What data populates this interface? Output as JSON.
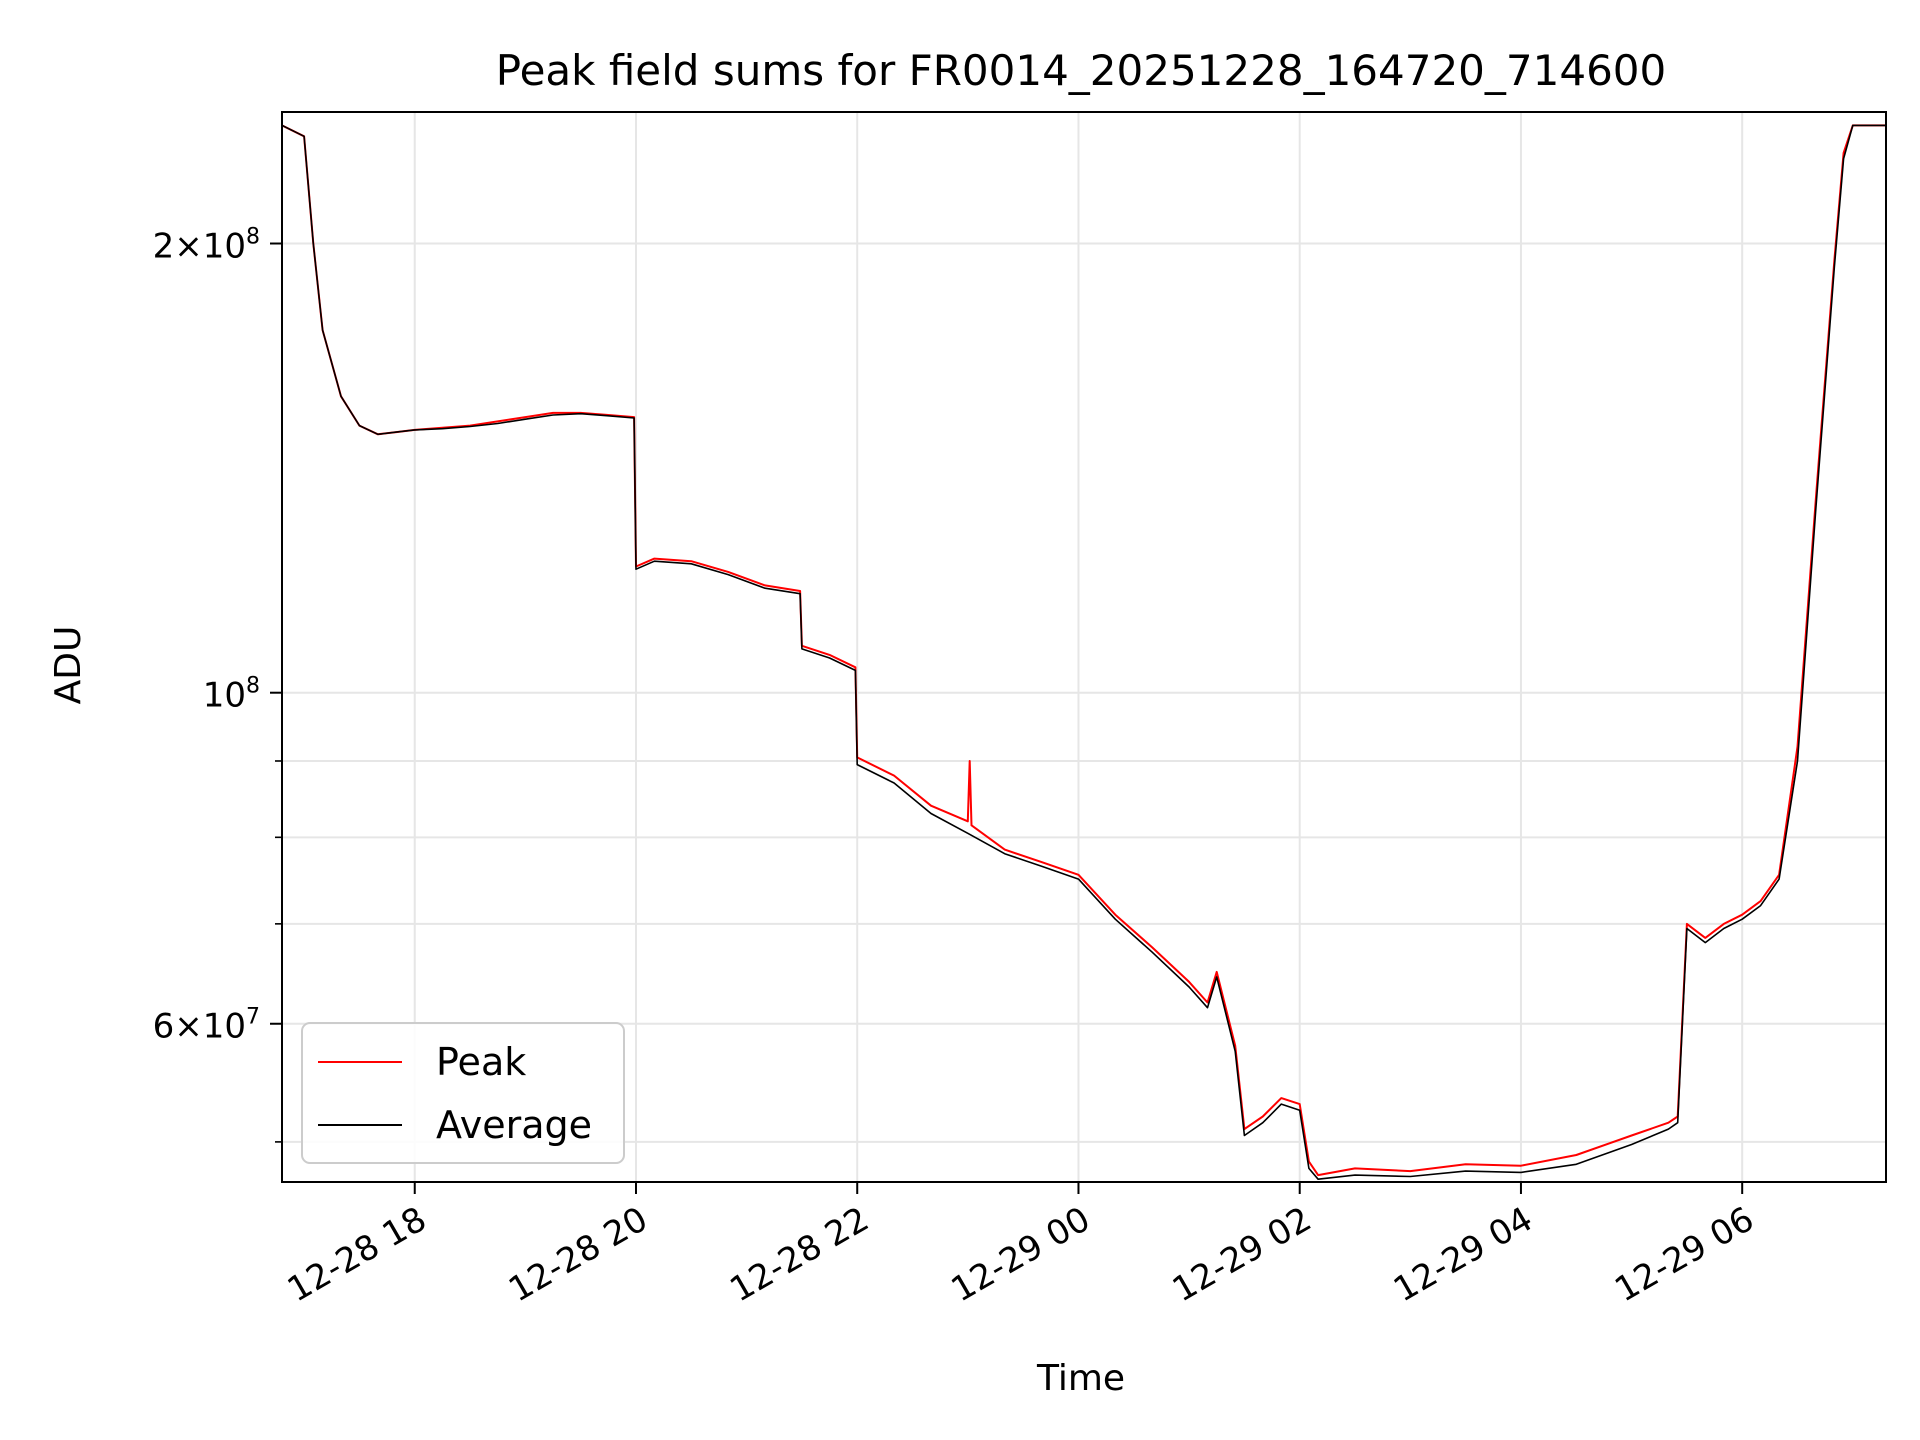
{
  "chart_data": {
    "type": "line",
    "title": "Peak field sums for FR0014_20251228_164720_714600",
    "xlabel": "Time",
    "ylabel": "ADU",
    "yscale": "log",
    "grid": true,
    "legend_position": "lower-left",
    "xlim": [
      "12-28 16:48",
      "12-29 07:18"
    ],
    "ylim": [
      47000000,
      245000000
    ],
    "x_ticks": [
      {
        "value": "12-28 18:00",
        "label": "12-28 18"
      },
      {
        "value": "12-28 20:00",
        "label": "12-28 20"
      },
      {
        "value": "12-28 22:00",
        "label": "12-28 22"
      },
      {
        "value": "12-29 00:00",
        "label": "12-29 00"
      },
      {
        "value": "12-29 02:00",
        "label": "12-29 02"
      },
      {
        "value": "12-29 04:00",
        "label": "12-29 04"
      },
      {
        "value": "12-29 06:00",
        "label": "12-29 06"
      }
    ],
    "y_ticks": [
      {
        "value": 200000000,
        "mantissa": "2",
        "base": "10",
        "exp": "8"
      },
      {
        "value": 100000000,
        "mantissa": "",
        "base": "10",
        "exp": "8"
      },
      {
        "value": 60000000,
        "mantissa": "6",
        "base": "10",
        "exp": "7"
      }
    ],
    "y_minor_ticks": [
      50000000,
      70000000,
      80000000,
      90000000
    ],
    "series": [
      {
        "name": "Peak",
        "color": "#ff0000",
        "x": [
          "12-28 16:48",
          "12-28 17:00",
          "12-28 17:05",
          "12-28 17:10",
          "12-28 17:20",
          "12-28 17:30",
          "12-28 17:40",
          "12-28 17:50",
          "12-28 18:00",
          "12-28 18:15",
          "12-28 18:30",
          "12-28 18:45",
          "12-28 19:00",
          "12-28 19:15",
          "12-28 19:30",
          "12-28 19:45",
          "12-28 19:59",
          "12-28 20:00",
          "12-28 20:10",
          "12-28 20:30",
          "12-28 20:50",
          "12-28 21:10",
          "12-28 21:29",
          "12-28 21:30",
          "12-28 21:45",
          "12-28 21:59",
          "12-28 22:00",
          "12-28 22:20",
          "12-28 22:40",
          "12-28 23:00",
          "12-28 23:01",
          "12-28 23:02",
          "12-28 23:20",
          "12-28 23:40",
          "12-29 00:00",
          "12-29 00:20",
          "12-29 00:40",
          "12-29 01:00",
          "12-29 01:10",
          "12-29 01:15",
          "12-29 01:25",
          "12-29 01:30",
          "12-29 01:40",
          "12-29 01:50",
          "12-29 02:00",
          "12-29 02:05",
          "12-29 02:10",
          "12-29 02:30",
          "12-29 03:00",
          "12-29 03:30",
          "12-29 04:00",
          "12-29 04:30",
          "12-29 05:00",
          "12-29 05:20",
          "12-29 05:25",
          "12-29 05:30",
          "12-29 05:40",
          "12-29 05:50",
          "12-29 06:00",
          "12-29 06:10",
          "12-29 06:20",
          "12-29 06:30",
          "12-29 06:40",
          "12-29 06:50",
          "12-29 06:55",
          "12-29 07:00",
          "12-29 07:18"
        ],
        "values": [
          240000000,
          236000000,
          200000000,
          175000000,
          158000000,
          151000000,
          149000000,
          149500000,
          150000000,
          150500000,
          151000000,
          152000000,
          153000000,
          154000000,
          154000000,
          153500000,
          153000000,
          121500000,
          123000000,
          122500000,
          120500000,
          118000000,
          117000000,
          107500000,
          106000000,
          104000000,
          90500000,
          88000000,
          84000000,
          82000000,
          90000000,
          81500000,
          78500000,
          77000000,
          75500000,
          71000000,
          67500000,
          64000000,
          62000000,
          65000000,
          58000000,
          51000000,
          52000000,
          53500000,
          53000000,
          48500000,
          47500000,
          48000000,
          47800000,
          48300000,
          48200000,
          49000000,
          50500000,
          51500000,
          52000000,
          70000000,
          68500000,
          70000000,
          71000000,
          72500000,
          75500000,
          92000000,
          135000000,
          195000000,
          230000000,
          240000000,
          240000000
        ]
      },
      {
        "name": "Average",
        "color": "#000000",
        "x": [
          "12-28 16:48",
          "12-28 17:00",
          "12-28 17:05",
          "12-28 17:10",
          "12-28 17:20",
          "12-28 17:30",
          "12-28 17:40",
          "12-28 17:50",
          "12-28 18:00",
          "12-28 18:15",
          "12-28 18:30",
          "12-28 18:45",
          "12-28 19:00",
          "12-28 19:15",
          "12-28 19:30",
          "12-28 19:45",
          "12-28 19:59",
          "12-28 20:00",
          "12-28 20:10",
          "12-28 20:30",
          "12-28 20:50",
          "12-28 21:10",
          "12-28 21:29",
          "12-28 21:30",
          "12-28 21:45",
          "12-28 21:59",
          "12-28 22:00",
          "12-28 22:20",
          "12-28 22:40",
          "12-28 23:00",
          "12-28 23:20",
          "12-28 23:40",
          "12-29 00:00",
          "12-29 00:20",
          "12-29 00:40",
          "12-29 01:00",
          "12-29 01:10",
          "12-29 01:15",
          "12-29 01:25",
          "12-29 01:30",
          "12-29 01:40",
          "12-29 01:50",
          "12-29 02:00",
          "12-29 02:05",
          "12-29 02:10",
          "12-29 02:30",
          "12-29 03:00",
          "12-29 03:30",
          "12-29 04:00",
          "12-29 04:30",
          "12-29 05:00",
          "12-29 05:20",
          "12-29 05:25",
          "12-29 05:30",
          "12-29 05:40",
          "12-29 05:50",
          "12-29 06:00",
          "12-29 06:10",
          "12-29 06:20",
          "12-29 06:30",
          "12-29 06:40",
          "12-29 06:50",
          "12-29 06:55",
          "12-29 07:00",
          "12-29 07:18"
        ],
        "values": [
          240000000,
          236000000,
          200000000,
          175000000,
          158000000,
          151000000,
          149000000,
          149500000,
          150000000,
          150300000,
          150800000,
          151500000,
          152500000,
          153500000,
          153800000,
          153300000,
          152800000,
          121000000,
          122500000,
          122000000,
          120000000,
          117500000,
          116500000,
          107000000,
          105500000,
          103500000,
          89500000,
          87000000,
          83000000,
          80500000,
          78000000,
          76500000,
          75000000,
          70500000,
          67000000,
          63500000,
          61500000,
          64500000,
          57500000,
          50500000,
          51500000,
          53000000,
          52500000,
          48000000,
          47200000,
          47500000,
          47400000,
          47800000,
          47700000,
          48300000,
          49800000,
          51000000,
          51500000,
          69500000,
          68000000,
          69500000,
          70500000,
          72000000,
          75000000,
          90000000,
          133000000,
          193000000,
          228000000,
          240000000,
          240000000
        ]
      }
    ]
  }
}
